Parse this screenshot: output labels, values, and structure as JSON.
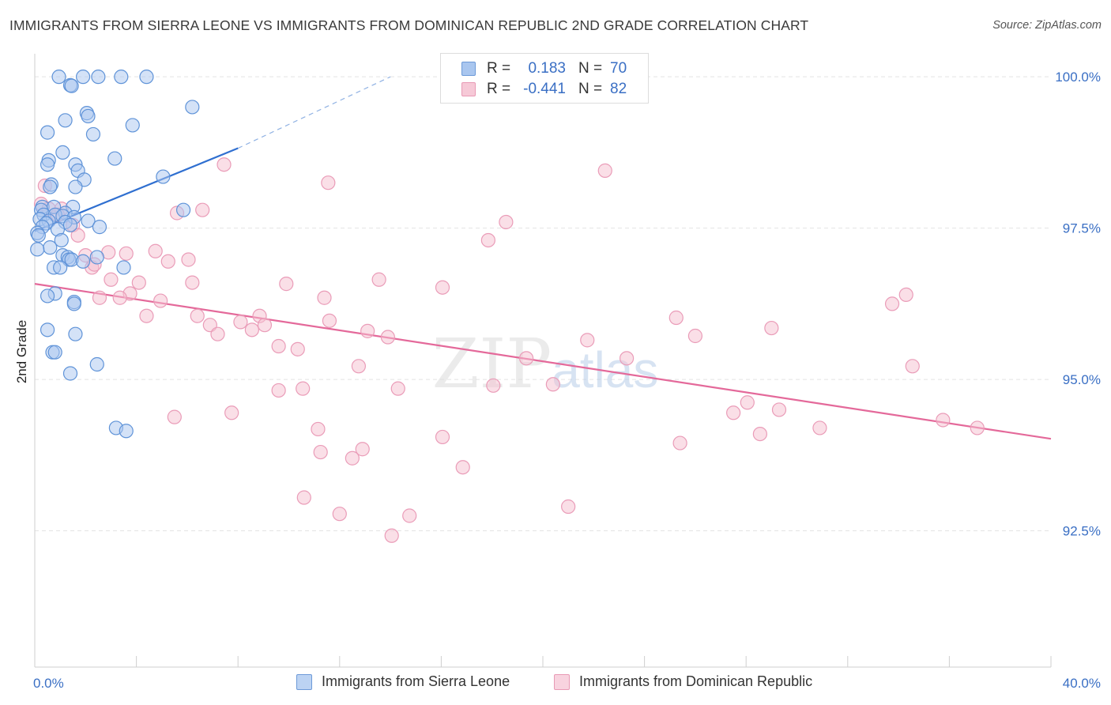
{
  "title": "IMMIGRANTS FROM SIERRA LEONE VS IMMIGRANTS FROM DOMINICAN REPUBLIC 2ND GRADE CORRELATION CHART",
  "source": "Source: ZipAtlas.com",
  "watermark": "ZIPatlas",
  "colors": {
    "blue": "#3a6fc4",
    "blue_fill": "#a9c6ef",
    "blue_line": "#2f6fd0",
    "pink_fill": "#f6bfd0",
    "pink_line": "#e4699a",
    "grid": "#e3e3e3"
  },
  "legend_top": {
    "rows": [
      {
        "r_label": "R =",
        "r_value": "0.183",
        "n_label": "N =",
        "n_value": "70"
      },
      {
        "r_label": "R =",
        "r_value": "-0.441",
        "n_label": "N =",
        "n_value": "82"
      }
    ]
  },
  "legend_bottom": {
    "items": [
      {
        "label": "Immigrants from Sierra Leone"
      },
      {
        "label": "Immigrants from Dominican Republic"
      }
    ]
  },
  "chart_data": {
    "type": "scatter",
    "title": "IMMIGRANTS FROM SIERRA LEONE VS IMMIGRANTS FROM DOMINICAN REPUBLIC 2ND GRADE CORRELATION CHART",
    "xlabel": "",
    "ylabel": "2nd Grade",
    "xlim": [
      0,
      40
    ],
    "ylim": [
      90.25,
      100.25
    ],
    "x_tick_labels": [
      {
        "value": 0,
        "label": "0.0%"
      },
      {
        "value": 40,
        "label": "40.0%"
      }
    ],
    "y_tick_labels": [
      {
        "value": 100,
        "label": "100.0%"
      },
      {
        "value": 97.5,
        "label": "97.5%"
      },
      {
        "value": 95,
        "label": "95.0%"
      },
      {
        "value": 92.5,
        "label": "92.5%"
      }
    ],
    "series": [
      {
        "name": "Immigrants from Sierra Leone",
        "color": "blue",
        "trend": {
          "x0": 0,
          "y0": 97.45,
          "x1": 8.0,
          "y1": 98.82,
          "dash_to_x": 14.0,
          "dash_to_y": 100.0
        },
        "points": [
          [
            0.95,
            100.0
          ],
          [
            1.4,
            99.86
          ],
          [
            1.9,
            100.0
          ],
          [
            2.5,
            100.0
          ],
          [
            3.4,
            100.0
          ],
          [
            4.4,
            100.0
          ],
          [
            1.45,
            99.85
          ],
          [
            6.2,
            99.5
          ],
          [
            2.05,
            99.4
          ],
          [
            2.1,
            99.35
          ],
          [
            1.2,
            99.28
          ],
          [
            3.85,
            99.2
          ],
          [
            0.5,
            99.08
          ],
          [
            2.3,
            99.05
          ],
          [
            1.1,
            98.75
          ],
          [
            3.15,
            98.65
          ],
          [
            0.55,
            98.62
          ],
          [
            0.5,
            98.55
          ],
          [
            1.6,
            98.55
          ],
          [
            1.7,
            98.45
          ],
          [
            5.05,
            98.35
          ],
          [
            1.95,
            98.3
          ],
          [
            0.65,
            98.22
          ],
          [
            0.6,
            98.18
          ],
          [
            1.6,
            98.18
          ],
          [
            0.3,
            97.85
          ],
          [
            0.75,
            97.85
          ],
          [
            1.5,
            97.85
          ],
          [
            0.25,
            97.8
          ],
          [
            5.85,
            97.8
          ],
          [
            1.2,
            97.75
          ],
          [
            0.35,
            97.72
          ],
          [
            0.8,
            97.72
          ],
          [
            1.1,
            97.7
          ],
          [
            1.55,
            97.68
          ],
          [
            0.2,
            97.65
          ],
          [
            0.55,
            97.62
          ],
          [
            1.2,
            97.6
          ],
          [
            2.1,
            97.62
          ],
          [
            0.45,
            97.58
          ],
          [
            1.4,
            97.55
          ],
          [
            0.3,
            97.52
          ],
          [
            2.55,
            97.52
          ],
          [
            0.9,
            97.48
          ],
          [
            0.1,
            97.42
          ],
          [
            1.05,
            97.3
          ],
          [
            0.6,
            97.18
          ],
          [
            0.1,
            97.15
          ],
          [
            1.1,
            97.05
          ],
          [
            1.3,
            97.02
          ],
          [
            2.45,
            97.02
          ],
          [
            1.35,
            96.98
          ],
          [
            1.45,
            96.98
          ],
          [
            1.9,
            96.95
          ],
          [
            0.75,
            96.85
          ],
          [
            1.0,
            96.85
          ],
          [
            3.5,
            96.85
          ],
          [
            0.8,
            96.42
          ],
          [
            0.5,
            96.38
          ],
          [
            1.55,
            96.28
          ],
          [
            1.55,
            96.25
          ],
          [
            0.5,
            95.82
          ],
          [
            1.6,
            95.75
          ],
          [
            0.7,
            95.45
          ],
          [
            0.8,
            95.45
          ],
          [
            2.45,
            95.25
          ],
          [
            1.4,
            95.1
          ],
          [
            3.2,
            94.2
          ],
          [
            3.6,
            94.15
          ],
          [
            0.15,
            97.38
          ]
        ]
      },
      {
        "name": "Immigrants from Dominican Republic",
        "color": "pink",
        "trend": {
          "x0": 0,
          "y0": 96.58,
          "x1": 40.0,
          "y1": 94.02
        },
        "points": [
          [
            0.4,
            98.2
          ],
          [
            0.25,
            97.9
          ],
          [
            0.55,
            97.82
          ],
          [
            1.05,
            97.82
          ],
          [
            0.9,
            97.72
          ],
          [
            1.5,
            97.55
          ],
          [
            1.7,
            97.38
          ],
          [
            2.0,
            97.05
          ],
          [
            2.25,
            96.85
          ],
          [
            2.35,
            96.9
          ],
          [
            2.9,
            97.1
          ],
          [
            3.6,
            97.08
          ],
          [
            4.75,
            97.12
          ],
          [
            5.25,
            96.95
          ],
          [
            6.05,
            96.98
          ],
          [
            3.0,
            96.65
          ],
          [
            4.1,
            96.6
          ],
          [
            6.2,
            96.6
          ],
          [
            3.75,
            96.42
          ],
          [
            2.55,
            96.35
          ],
          [
            3.35,
            96.35
          ],
          [
            4.95,
            96.3
          ],
          [
            4.4,
            96.05
          ],
          [
            6.4,
            96.05
          ],
          [
            6.9,
            95.9
          ],
          [
            7.2,
            95.75
          ],
          [
            8.1,
            95.95
          ],
          [
            8.55,
            95.82
          ],
          [
            8.85,
            96.05
          ],
          [
            9.05,
            95.9
          ],
          [
            9.6,
            95.55
          ],
          [
            10.35,
            95.5
          ],
          [
            9.9,
            96.58
          ],
          [
            11.4,
            96.35
          ],
          [
            11.6,
            95.97
          ],
          [
            13.1,
            95.8
          ],
          [
            12.75,
            95.22
          ],
          [
            13.9,
            95.7
          ],
          [
            13.55,
            96.65
          ],
          [
            16.05,
            96.52
          ],
          [
            14.3,
            94.85
          ],
          [
            17.85,
            97.3
          ],
          [
            11.55,
            98.25
          ],
          [
            7.45,
            98.55
          ],
          [
            18.55,
            97.6
          ],
          [
            22.45,
            98.45
          ],
          [
            20.4,
            94.92
          ],
          [
            19.35,
            95.35
          ],
          [
            21.75,
            95.65
          ],
          [
            23.3,
            95.35
          ],
          [
            25.25,
            96.02
          ],
          [
            26.0,
            95.72
          ],
          [
            25.4,
            93.95
          ],
          [
            27.5,
            94.45
          ],
          [
            28.05,
            94.62
          ],
          [
            28.55,
            94.1
          ],
          [
            29.0,
            95.85
          ],
          [
            29.3,
            94.5
          ],
          [
            30.9,
            94.2
          ],
          [
            33.75,
            96.25
          ],
          [
            34.3,
            96.4
          ],
          [
            34.55,
            95.22
          ],
          [
            35.75,
            94.33
          ],
          [
            37.1,
            94.2
          ],
          [
            9.6,
            94.82
          ],
          [
            10.55,
            94.85
          ],
          [
            11.15,
            94.18
          ],
          [
            11.25,
            93.8
          ],
          [
            12.5,
            93.7
          ],
          [
            12.9,
            93.85
          ],
          [
            10.6,
            93.05
          ],
          [
            12.0,
            92.78
          ],
          [
            14.05,
            92.42
          ],
          [
            14.75,
            92.75
          ],
          [
            16.05,
            94.05
          ],
          [
            16.85,
            93.55
          ],
          [
            18.05,
            94.9
          ],
          [
            21.0,
            92.9
          ],
          [
            5.5,
            94.38
          ],
          [
            7.75,
            94.45
          ],
          [
            5.6,
            97.75
          ],
          [
            6.6,
            97.8
          ]
        ]
      }
    ]
  }
}
